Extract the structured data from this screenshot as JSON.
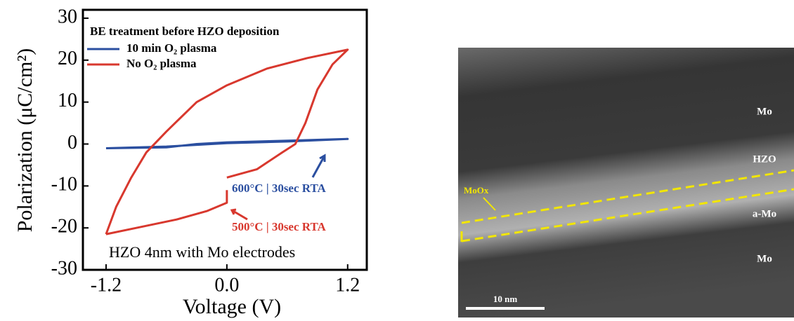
{
  "chart_data": {
    "type": "line",
    "x_label": "Voltage (V)",
    "y_label": "Polarization (μC/cm²)",
    "legend_title": "BE treatment before HZO deposition",
    "xlim": [
      -1.43,
      1.39
    ],
    "ylim": [
      -30,
      32
    ],
    "xticks": [
      {
        "value": -1.2,
        "label": "-1.2"
      },
      {
        "value": 0,
        "label": "0.0"
      },
      1.2
    ],
    "yticks": [
      -30,
      -20,
      -10,
      0,
      10,
      20,
      30
    ],
    "annotations": [
      "600°C | 30sec RTA",
      "500°C | 30sec RTA",
      "HZO 4nm with Mo electrodes"
    ],
    "series": [
      {
        "name": "10 min O₂ plasma",
        "color": "#2b4fa0",
        "x": [
          -1.2,
          -0.6,
          0,
          0.6,
          1.2,
          0.6,
          0,
          -0.3,
          -0.6,
          -1.2
        ],
        "values": [
          -1,
          -0.6,
          0.2,
          0.6,
          1.2,
          0.8,
          0.4,
          0,
          -0.8,
          -1
        ]
      },
      {
        "name": "No O₂ plasma",
        "color": "#d8382e",
        "x": [
          0,
          0.3,
          0.55,
          0.68,
          0.78,
          0.9,
          1.05,
          1.2,
          0.8,
          0.4,
          0,
          -0.3,
          -0.6,
          -0.8,
          -0.95,
          -1.1,
          -1.2,
          null,
          -1.2,
          -0.9,
          -0.5,
          -0.2,
          0,
          0
        ],
        "values": [
          -8,
          -6,
          -2,
          0,
          5,
          13,
          19,
          22.5,
          20.5,
          18,
          14,
          10,
          3,
          -2,
          -8,
          -15,
          -21.5,
          null,
          -21.5,
          -20,
          -18,
          -16,
          -14,
          -11
        ]
      }
    ]
  },
  "micrograph": {
    "labels": [
      "Mo",
      "HZO",
      "a-Mo",
      "Mo",
      "MoOx"
    ],
    "scale_bar": "10 nm"
  }
}
